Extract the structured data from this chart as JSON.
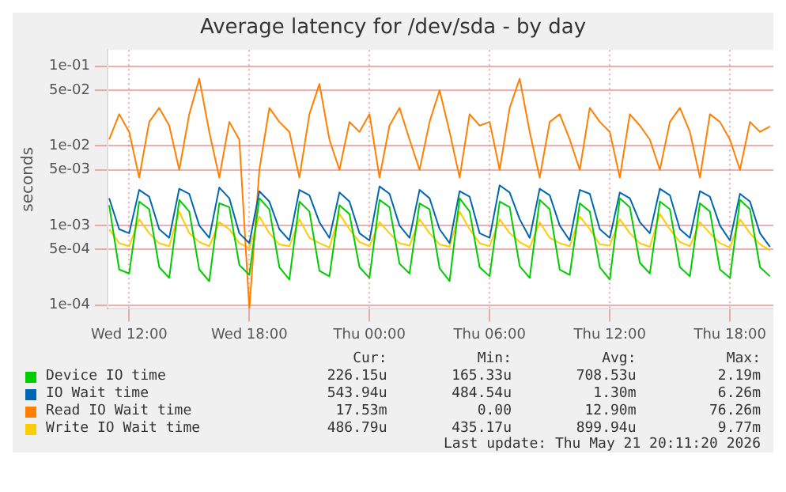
{
  "chart_data": {
    "type": "line",
    "title": "Average latency for /dev/sda - by day",
    "ylabel": "seconds",
    "log": "y",
    "grid": true,
    "legend": "bottom",
    "x": [
      "2026-05-20T11:00",
      "2026-05-20T11:30",
      "2026-05-20T12:00",
      "2026-05-20T12:30",
      "2026-05-20T13:00",
      "2026-05-20T13:30",
      "2026-05-20T14:00",
      "2026-05-20T14:30",
      "2026-05-20T15:00",
      "2026-05-20T15:30",
      "2026-05-20T16:00",
      "2026-05-20T16:30",
      "2026-05-20T17:00",
      "2026-05-20T17:30",
      "2026-05-20T18:00",
      "2026-05-20T18:30",
      "2026-05-20T19:00",
      "2026-05-20T19:30",
      "2026-05-20T20:00",
      "2026-05-20T20:30",
      "2026-05-20T21:00",
      "2026-05-20T21:30",
      "2026-05-20T22:00",
      "2026-05-20T22:30",
      "2026-05-20T23:00",
      "2026-05-20T23:30",
      "2026-05-21T00:00",
      "2026-05-21T00:30",
      "2026-05-21T01:00",
      "2026-05-21T01:30",
      "2026-05-21T02:00",
      "2026-05-21T02:30",
      "2026-05-21T03:00",
      "2026-05-21T03:30",
      "2026-05-21T04:00",
      "2026-05-21T04:30",
      "2026-05-21T05:00",
      "2026-05-21T05:30",
      "2026-05-21T06:00",
      "2026-05-21T06:30",
      "2026-05-21T07:00",
      "2026-05-21T07:30",
      "2026-05-21T08:00",
      "2026-05-21T08:30",
      "2026-05-21T09:00",
      "2026-05-21T09:30",
      "2026-05-21T10:00",
      "2026-05-21T10:30",
      "2026-05-21T11:00",
      "2026-05-21T11:30",
      "2026-05-21T12:00",
      "2026-05-21T12:30",
      "2026-05-21T13:00",
      "2026-05-21T13:30",
      "2026-05-21T14:00",
      "2026-05-21T14:30",
      "2026-05-21T15:00",
      "2026-05-21T15:30",
      "2026-05-21T16:00",
      "2026-05-21T16:30",
      "2026-05-21T17:00",
      "2026-05-21T17:30",
      "2026-05-21T18:00",
      "2026-05-21T18:30",
      "2026-05-21T19:00",
      "2026-05-21T19:30",
      "2026-05-21T20:00"
    ],
    "series": [
      {
        "name": "Device IO time",
        "color": "#00cc00",
        "values": [
          0.0018,
          0.00028,
          0.00025,
          0.002,
          0.0016,
          0.0003,
          0.00022,
          0.0021,
          0.0015,
          0.00028,
          0.0002,
          0.0019,
          0.0017,
          0.00032,
          0.00024,
          0.0022,
          0.0016,
          0.0003,
          0.00021,
          0.002,
          0.0015,
          0.00027,
          0.00023,
          0.0018,
          0.0014,
          0.0003,
          0.00022,
          0.0021,
          0.0017,
          0.00033,
          0.00025,
          0.0019,
          0.0016,
          0.00029,
          0.0002,
          0.0022,
          0.0015,
          0.0003,
          0.00023,
          0.002,
          0.0017,
          0.00031,
          0.00022,
          0.0021,
          0.0016,
          0.00028,
          0.00024,
          0.0019,
          0.0015,
          0.0003,
          0.00021,
          0.0022,
          0.0017,
          0.00034,
          0.00025,
          0.002,
          0.0016,
          0.0003,
          0.00023,
          0.0019,
          0.0015,
          0.00028,
          0.00022,
          0.0021,
          0.0016,
          0.0003,
          0.00023
        ]
      },
      {
        "name": "IO Wait time",
        "color": "#0066b3",
        "values": [
          0.0022,
          0.0009,
          0.0008,
          0.0028,
          0.0023,
          0.0009,
          0.0007,
          0.0029,
          0.0025,
          0.001,
          0.0007,
          0.003,
          0.0022,
          0.0008,
          0.0006,
          0.0027,
          0.002,
          0.0009,
          0.00065,
          0.0028,
          0.0024,
          0.0011,
          0.0007,
          0.0026,
          0.002,
          0.0008,
          0.00065,
          0.0031,
          0.0025,
          0.001,
          0.0007,
          0.0028,
          0.0022,
          0.0009,
          0.0006,
          0.0027,
          0.0023,
          0.0008,
          0.0007,
          0.0032,
          0.0026,
          0.0012,
          0.0007,
          0.0029,
          0.0024,
          0.001,
          0.00065,
          0.0028,
          0.0025,
          0.0009,
          0.0007,
          0.0026,
          0.0022,
          0.0011,
          0.0008,
          0.0029,
          0.0024,
          0.0009,
          0.0007,
          0.0027,
          0.0023,
          0.001,
          0.00065,
          0.0025,
          0.002,
          0.0008,
          0.00054
        ]
      },
      {
        "name": "Read IO Wait time",
        "color": "#ff8000",
        "values": [
          0.012,
          0.025,
          0.015,
          0.004,
          0.02,
          0.03,
          0.018,
          0.005,
          0.025,
          0.07,
          0.015,
          0.004,
          0.02,
          0.012,
          9e-05,
          0.005,
          0.03,
          0.02,
          0.015,
          0.004,
          0.025,
          0.06,
          0.012,
          0.005,
          0.02,
          0.015,
          0.025,
          0.004,
          0.018,
          0.03,
          0.012,
          0.005,
          0.02,
          0.05,
          0.015,
          0.004,
          0.025,
          0.018,
          0.02,
          0.005,
          0.03,
          0.07,
          0.015,
          0.004,
          0.02,
          0.025,
          0.012,
          0.005,
          0.03,
          0.02,
          0.015,
          0.004,
          0.025,
          0.018,
          0.012,
          0.005,
          0.02,
          0.03,
          0.015,
          0.004,
          0.025,
          0.02,
          0.012,
          0.005,
          0.02,
          0.015,
          0.0175
        ]
      },
      {
        "name": "Write IO Wait time",
        "color": "#ffcc00",
        "values": [
          0.0009,
          0.0006,
          0.00055,
          0.0012,
          0.0008,
          0.0006,
          0.00055,
          0.0015,
          0.0008,
          0.00062,
          0.00055,
          0.0011,
          0.0009,
          0.0006,
          0.00052,
          0.0013,
          0.0008,
          0.00058,
          0.00055,
          0.0012,
          0.0007,
          0.0006,
          0.00053,
          0.0014,
          0.0009,
          0.00062,
          0.00055,
          0.0011,
          0.0008,
          0.0006,
          0.00056,
          0.0012,
          0.0008,
          0.00058,
          0.00054,
          0.0015,
          0.0009,
          0.0006,
          0.00055,
          0.0012,
          0.0008,
          0.00062,
          0.00053,
          0.0011,
          0.0007,
          0.0006,
          0.00055,
          0.0013,
          0.0009,
          0.00058,
          0.00056,
          0.0012,
          0.0008,
          0.0006,
          0.00054,
          0.0014,
          0.0009,
          0.00062,
          0.00055,
          0.0011,
          0.0008,
          0.0006,
          0.00053,
          0.0012,
          0.0008,
          0.00058,
          0.00049
        ]
      }
    ],
    "xlim": [
      "2026-05-20T10:55",
      "2026-05-21T20:10"
    ],
    "xticks": [
      {
        "value": "2026-05-20T12:00",
        "label": "Wed 12:00"
      },
      {
        "value": "2026-05-20T18:00",
        "label": "Wed 18:00"
      },
      {
        "value": "2026-05-21T00:00",
        "label": "Thu 00:00"
      },
      {
        "value": "2026-05-21T06:00",
        "label": "Thu 06:00"
      },
      {
        "value": "2026-05-21T12:00",
        "label": "Thu 12:00"
      },
      {
        "value": "2026-05-21T18:00",
        "label": "Thu 18:00"
      }
    ],
    "ylim": [
      9e-05,
      0.16
    ],
    "yticks": [
      {
        "value": 0.0001,
        "label": "1e-04"
      },
      {
        "value": 0.0005,
        "label": "5e-04"
      },
      {
        "value": 0.001,
        "label": "1e-03"
      },
      {
        "value": 0.005,
        "label": "5e-03"
      },
      {
        "value": 0.01,
        "label": "1e-02"
      },
      {
        "value": 0.05,
        "label": "5e-02"
      },
      {
        "value": 0.1,
        "label": "1e-01"
      }
    ],
    "annotations": [
      "Cur:",
      "Min:",
      "Avg:",
      "Max:",
      "226.15u",
      "165.33u",
      "708.53u",
      "2.19m",
      "543.94u",
      "484.54u",
      "1.30m",
      "6.26m",
      "17.53m",
      "0.00",
      "12.90m",
      "76.26m",
      "486.79u",
      "435.17u",
      "899.94u",
      "9.77m",
      "Last update: Thu May 21 20:11:20 2026"
    ]
  }
}
